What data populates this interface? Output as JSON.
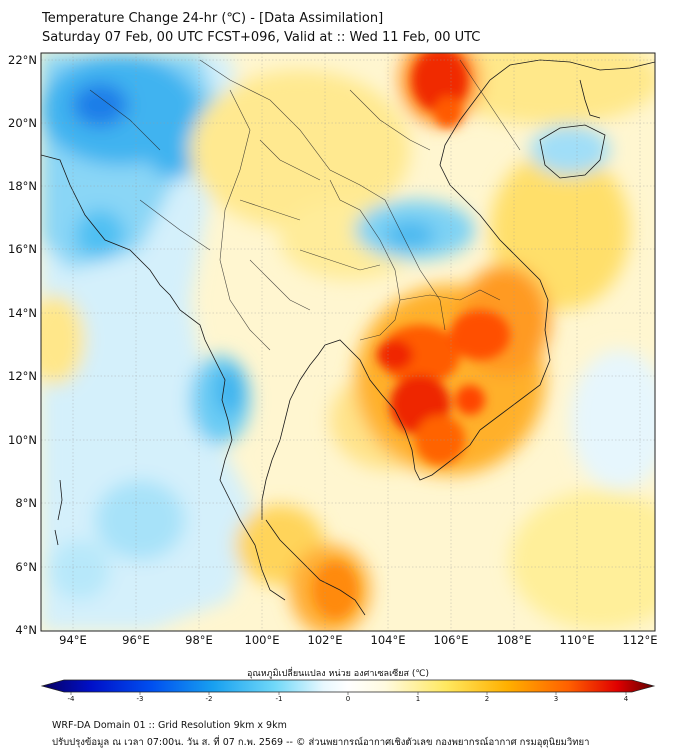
{
  "header": {
    "title_line1": "Temperature Change 24-hr (℃) - [Data Assimilation]",
    "title_line2": "Saturday 07 Feb, 00 UTC FCST+096, Valid at :: Wed 11 Feb, 00 UTC"
  },
  "map": {
    "lat_labels": [
      "22°N",
      "20°N",
      "18°N",
      "16°N",
      "14°N",
      "12°N",
      "10°N",
      "8°N",
      "6°N",
      "4°N"
    ],
    "lon_labels": [
      "94°E",
      "96°E",
      "98°E",
      "100°E",
      "102°E",
      "104°E",
      "106°E",
      "108°E",
      "110°E",
      "112°E"
    ],
    "lat_range": [
      4,
      22.3
    ],
    "lon_range": [
      93,
      112.5
    ]
  },
  "colorbar": {
    "label": "อุณหภูมิเปลี่ยนแปลง หน่วย องศาเซลเซียส (℃)",
    "ticks": [
      "-4",
      "-3",
      "-2",
      "-1",
      "0",
      "1",
      "2",
      "3",
      "4"
    ],
    "min": -4,
    "max": 4,
    "colors": [
      "#080060",
      "#0010c8",
      "#0050f0",
      "#18a0f0",
      "#70d8f8",
      "#e8f8ff",
      "#ffffff",
      "#fffae0",
      "#ffe860",
      "#ffb000",
      "#ff6000",
      "#e00000",
      "#600000"
    ]
  },
  "footer": {
    "line1": "WRF-DA Domain 01 :: Grid Resolution 9km x 9km",
    "line2": "ปรับปรุงข้อมูล ณ เวลา 07:00น. วัน ส. ที่ 07 ก.พ. 2569 -- © ส่วนพยากรณ์อากาศเชิงตัวเลข กองพยากรณ์อากาศ กรมอุตุนิยมวิทยา"
  }
}
